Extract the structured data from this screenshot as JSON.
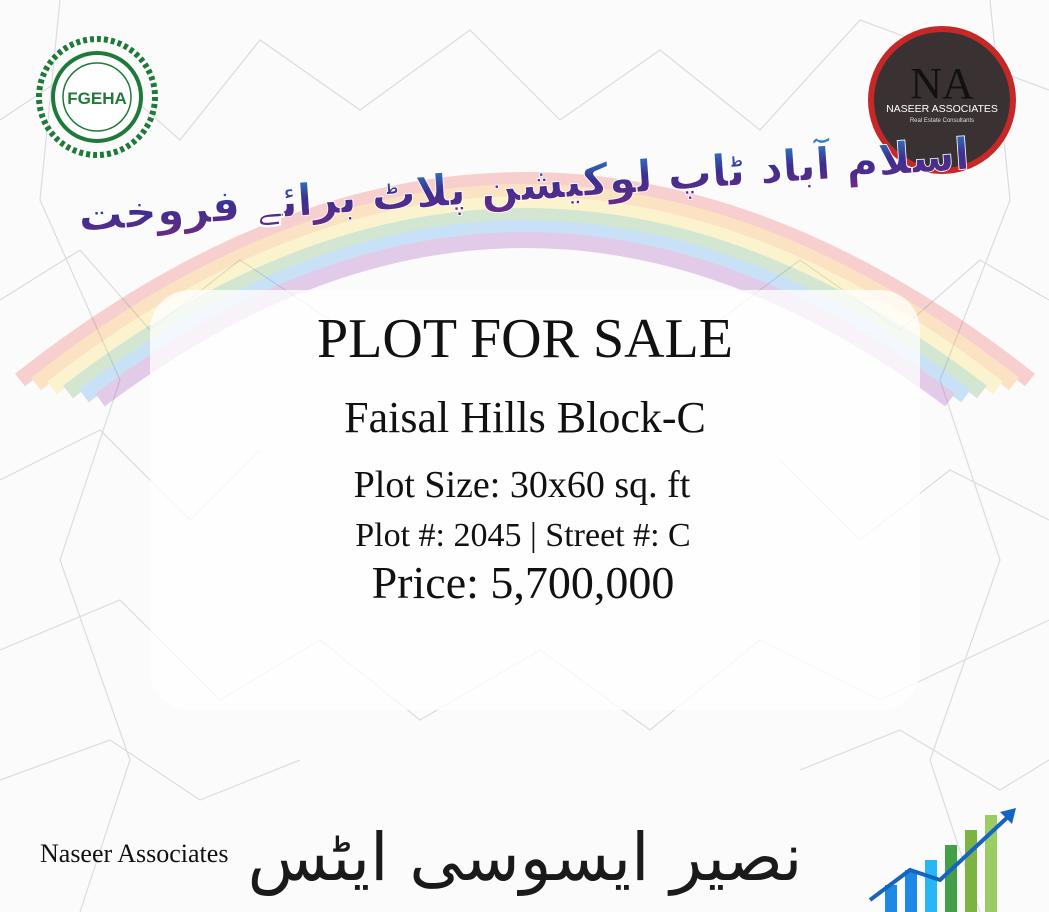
{
  "header": {
    "urdu_title": "اسلام آباد ٹاپ لوکیشن پلاٹ برائے فروخت",
    "left_logo": {
      "text": "FGEHA"
    },
    "right_logo": {
      "initials": "NA",
      "name": "NASEER ASSOCIATES",
      "tagline": "Real Estate Consultants"
    }
  },
  "main": {
    "title": "PLOT FOR SALE",
    "location": "Faisal Hills Block-C",
    "plot_size": "Plot Size: 30x60 sq. ft",
    "plot_street": "Plot #: 2045 | Street #: C",
    "price": "Price: 5,700,000"
  },
  "footer": {
    "company": "Naseer Associates",
    "urdu_company": "نصیر ایسوسی ایٹس"
  }
}
